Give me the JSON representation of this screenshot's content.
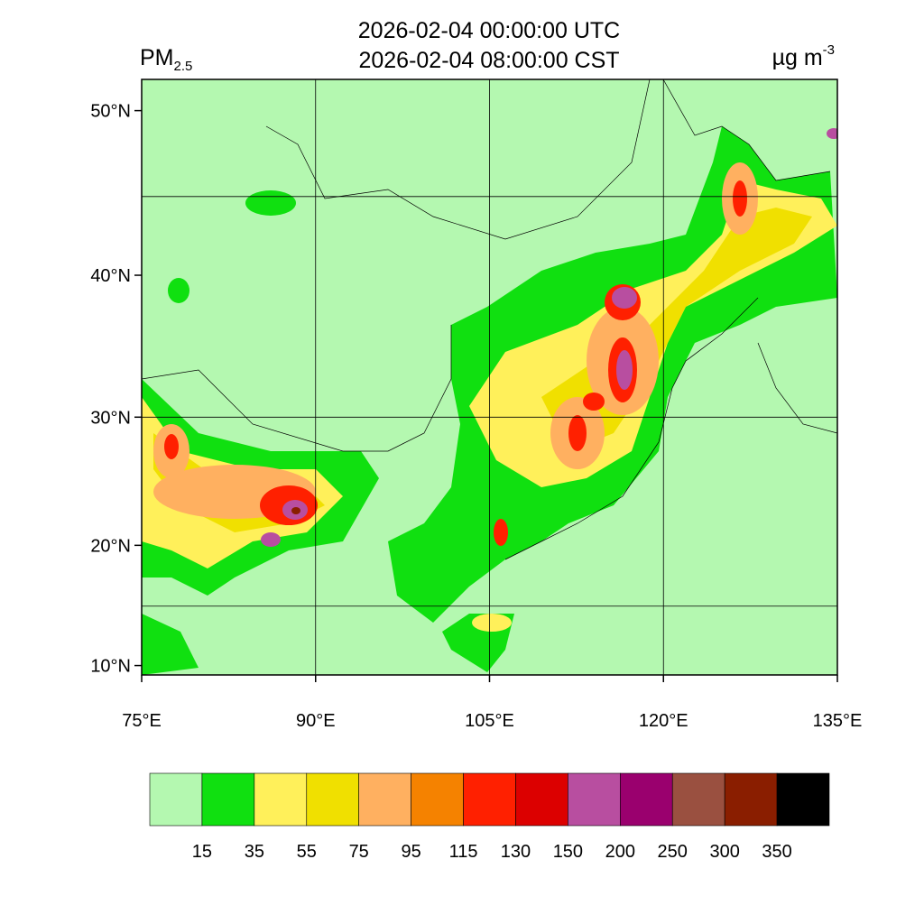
{
  "title_lines": [
    "2026-02-04 00:00:00 UTC",
    "2026-02-04 08:00:00 CST"
  ],
  "variable": "PM",
  "variable_subscript": "2.5",
  "units": "µg m",
  "units_superscript": "-3",
  "map": {
    "lonlim": [
      75,
      135
    ],
    "latlim": [
      9.2,
      51.7
    ],
    "lon_ticks": [
      {
        "value": 75,
        "label": "75°E"
      },
      {
        "value": 90,
        "label": "90°E"
      },
      {
        "value": 105,
        "label": "105°E"
      },
      {
        "value": 120,
        "label": "120°E"
      },
      {
        "value": 135,
        "label": "135°E"
      }
    ],
    "lat_ticks": [
      {
        "value": 10,
        "label": "10°N"
      },
      {
        "value": 20,
        "label": "20°N"
      },
      {
        "value": 30,
        "label": "30°N"
      },
      {
        "value": 40,
        "label": "40°N"
      },
      {
        "value": 50,
        "label": "50°N"
      }
    ],
    "lon_grid": [
      90,
      105,
      120
    ],
    "lat_grid": [
      15,
      30,
      45
    ]
  },
  "colorbar": {
    "levels": [
      15,
      35,
      55,
      75,
      95,
      115,
      130,
      150,
      200,
      250,
      300,
      350
    ],
    "colors": [
      "#b4f8b0",
      "#10e010",
      "#fff05a",
      "#f0e000",
      "#ffb060",
      "#f58200",
      "#ff2000",
      "#dc0000",
      "#b84ea0",
      "#9a006e",
      "#9a5040",
      "#8a1e00",
      "#000000"
    ]
  }
}
